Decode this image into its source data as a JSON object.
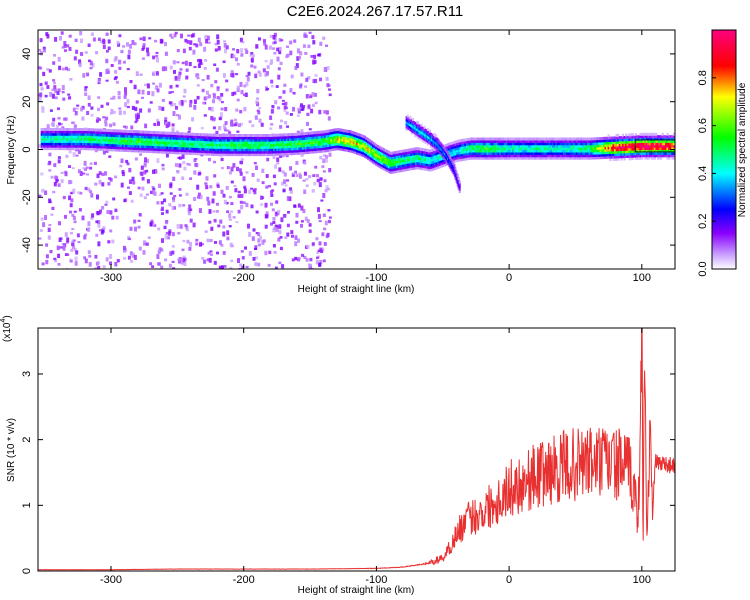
{
  "title": "C2E6.2024.267.17.57.R11",
  "chart_data": [
    {
      "type": "heatmap",
      "xlabel": "Height of straight line (km)",
      "ylabel": "Frequency (Hz)",
      "xlim": [
        -355,
        125
      ],
      "ylim": [
        -50,
        50
      ],
      "xticks": [
        -300,
        -200,
        -100,
        0,
        100
      ],
      "yticks": [
        -40,
        -20,
        0,
        20,
        40
      ],
      "colorbar": {
        "label": "Normalized spectral amplitude",
        "range": [
          0,
          1
        ],
        "ticks": [
          0.0,
          0.2,
          0.4,
          0.6,
          0.8
        ],
        "tick_labels": [
          "0.0",
          "0.2",
          "0.4",
          "0.6",
          "0.8"
        ],
        "colormap": [
          "#ffffff",
          "#8a00ff",
          "#0000ff",
          "#00ffff",
          "#00ff00",
          "#ffff00",
          "#ff0000",
          "#ff00aa"
        ]
      },
      "ridge": {
        "x": [
          -345,
          -320,
          -300,
          -280,
          -260,
          -240,
          -220,
          -200,
          -180,
          -160,
          -140,
          -130,
          -120,
          -110,
          -100,
          -90,
          -80,
          -70,
          -60,
          -50,
          -40,
          -30,
          -20,
          -10,
          0,
          20,
          40,
          60,
          80,
          100,
          125
        ],
        "y": [
          5,
          5,
          4.5,
          4,
          3.5,
          3,
          2.5,
          2.5,
          2.5,
          3,
          4,
          5,
          4,
          2,
          -2,
          -5,
          -4,
          -3,
          -4,
          -2,
          0,
          1,
          1,
          1,
          1,
          1,
          1,
          1,
          1.5,
          2,
          2
        ],
        "amplitude": [
          0.45,
          0.5,
          0.5,
          0.55,
          0.5,
          0.5,
          0.5,
          0.55,
          0.5,
          0.55,
          0.55,
          0.7,
          0.75,
          0.7,
          0.65,
          0.6,
          0.5,
          0.5,
          0.45,
          0.45,
          0.4,
          0.5,
          0.55,
          0.5,
          0.45,
          0.45,
          0.45,
          0.5,
          0.95,
          1.0,
          0.9
        ]
      },
      "branch": {
        "x": [
          -78,
          -70,
          -62,
          -55,
          -48,
          -42,
          -38
        ],
        "y": [
          12,
          9,
          6,
          3,
          -2,
          -8,
          -15
        ],
        "amplitude": [
          0.35,
          0.4,
          0.4,
          0.35,
          0.3,
          0.25,
          0.2
        ]
      },
      "noise_region": {
        "x": [
          -355,
          -135
        ],
        "y": [
          -50,
          50
        ]
      }
    },
    {
      "type": "line",
      "xlabel": "Height of straight line (km)",
      "ylabel": "SNR (10 * v/v)",
      "y_multiplier": "(x10",
      "y_multiplier_exp": "4",
      "xlim": [
        -355,
        125
      ],
      "ylim": [
        0,
        3.7
      ],
      "xticks": [
        -300,
        -200,
        -100,
        0,
        100
      ],
      "yticks": [
        0,
        1,
        2,
        3
      ],
      "color": "#e83030",
      "x": [
        -355,
        -300,
        -250,
        -200,
        -150,
        -100,
        -80,
        -60,
        -50,
        -45,
        -40,
        -35,
        -30,
        -25,
        -20,
        -15,
        -10,
        -5,
        0,
        10,
        20,
        30,
        40,
        50,
        60,
        70,
        80,
        85,
        90,
        95,
        97,
        99,
        100,
        101,
        102,
        104,
        106,
        108,
        110,
        115,
        120,
        125
      ],
      "values": [
        0.02,
        0.02,
        0.03,
        0.03,
        0.03,
        0.04,
        0.06,
        0.12,
        0.2,
        0.35,
        0.55,
        0.7,
        0.8,
        0.85,
        0.9,
        1.0,
        1.05,
        1.15,
        1.25,
        1.35,
        1.45,
        1.52,
        1.58,
        1.62,
        1.65,
        1.65,
        1.63,
        1.6,
        1.55,
        1.2,
        0.6,
        2.4,
        3.7,
        0.3,
        3.4,
        0.4,
        2.3,
        0.8,
        1.65,
        1.65,
        1.62,
        1.6
      ]
    }
  ]
}
